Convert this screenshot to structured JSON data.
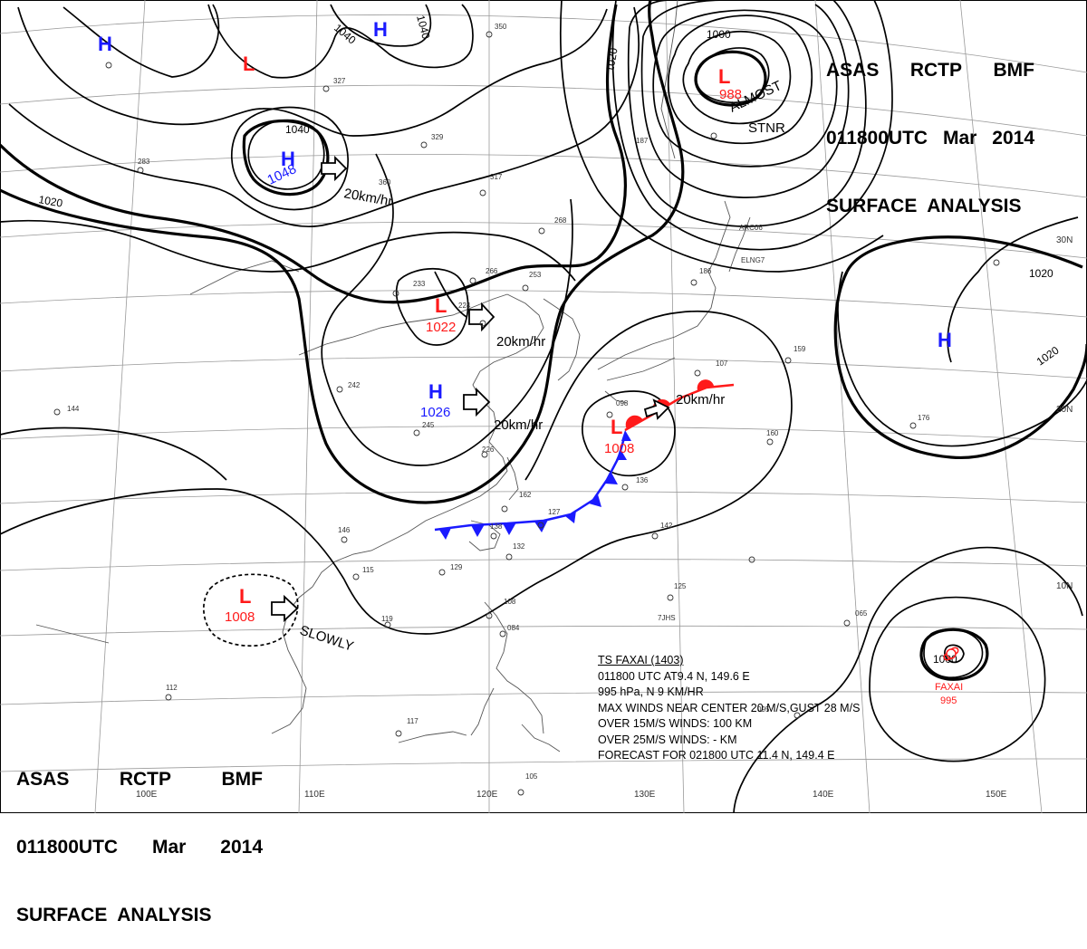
{
  "header": {
    "top_right": {
      "line1": [
        "ASAS",
        "RCTP",
        "BMF"
      ],
      "line2": [
        "011800UTC",
        "Mar",
        "2014"
      ],
      "line3": "SURFACE  ANALYSIS"
    },
    "bottom_left": {
      "line1": [
        "ASAS",
        "RCTP",
        "BMF"
      ],
      "line2": [
        "011800UTC",
        "Mar",
        "2014"
      ],
      "line3": "SURFACE  ANALYSIS"
    }
  },
  "systems": {
    "high_nw": "H",
    "low_nw": "L",
    "high_north": "H",
    "high_mongolia": "H",
    "high_mongolia_pressure": "1048",
    "low_okhotsk": "L",
    "low_okhotsk_pressure": "988",
    "low_okhotsk_note1": "ALMOST",
    "low_okhotsk_note2": "STNR",
    "low_north_china": "L",
    "low_north_china_pressure": "1022",
    "high_china": "H",
    "high_china_pressure": "1026",
    "low_japan": "L",
    "low_japan_pressure": "1008",
    "high_pacific": "H",
    "low_scs": "L",
    "low_scs_pressure": "1008",
    "typhoon_name": "FAXAI",
    "typhoon_pressure": "995"
  },
  "motions": {
    "mongolia_high": "20km/hr",
    "north_china_low": "20km/hr",
    "china_high": "20km/hr",
    "japan_low": "20km/hr",
    "scs_low": "SLOWLY"
  },
  "isobars": {
    "a1040": "1040",
    "b1040": "1040",
    "c1040": "1040",
    "a1020": "1020",
    "b1020": "1020",
    "c1020": "1020",
    "a1000": "1000",
    "b1000": "1000"
  },
  "grid_labels": {
    "lat30": "30N",
    "lat20": "20N",
    "lat10": "10N",
    "lon100": "100E",
    "lon110": "110E",
    "lon120": "120E",
    "lon130": "130E",
    "lon140": "140E",
    "lon150": "150E"
  },
  "stations": {
    "s1": "350",
    "s2": "327",
    "s3": "329",
    "s4": "317",
    "s5": "360",
    "s6": "283",
    "s7": "268",
    "s8": "266",
    "s9": "253",
    "s10": "233",
    "s11": "224",
    "s12": "242",
    "s13": "245",
    "s14": "226",
    "s15": "162",
    "s16": "127",
    "s17": "138",
    "s18": "132",
    "s19": "129",
    "s20": "146",
    "s21": "115",
    "s22": "119",
    "s23": "108",
    "s24": "084",
    "s25": "112",
    "s26": "117",
    "s27": "105",
    "s28": "136",
    "s29": "142",
    "s30": "107",
    "s31": "159",
    "s32": "176",
    "s33": "160",
    "s34": "186",
    "s35": "187",
    "s36": "144",
    "s37": "125",
    "s38": "065",
    "s39": "095",
    "s40": "098"
  },
  "ship_ids": {
    "ship1": "ARC06",
    "ship2": "ELNG7",
    "ship3": "7JHS"
  },
  "typhoon_info": {
    "line1": "TS  FAXAI  (1403)",
    "line2": "011800  UTC   AT9.4  N,  149.6  E",
    "line3": "995  hPa, N   9  KM/HR",
    "line4": "MAX WINDS NEAR CENTER 20 M/S,GUST 28 M/S",
    "line5": "OVER 15M/S WINDS: 100  KM",
    "line6": "OVER 25M/S WINDS: -  KM",
    "line7": "FORECAST FOR 021800  UTC  11.4  N,  149.4  E"
  },
  "colors": {
    "high": "#1a1aff",
    "low": "#ff1a1a",
    "cold_front": "#1a1aff",
    "warm_front": "#ff1a1a",
    "isobar": "#000000",
    "coast": "#555555",
    "grid": "#9a9a9a"
  }
}
